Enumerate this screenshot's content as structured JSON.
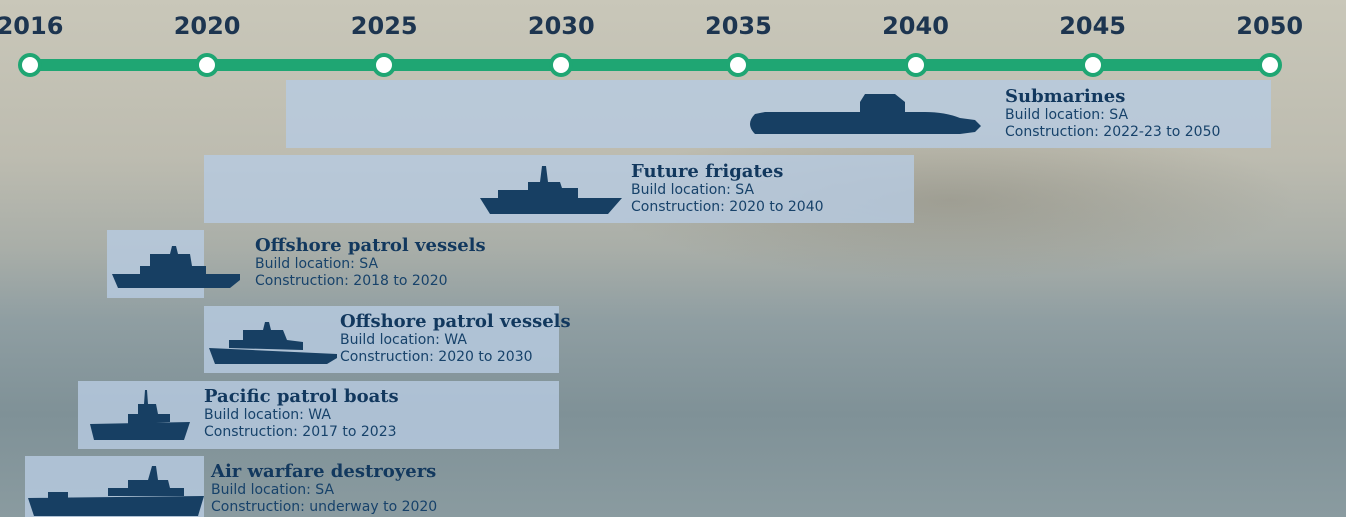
{
  "timeline": {
    "years": [
      "2016",
      "2020",
      "2025",
      "2030",
      "2035",
      "2040",
      "2045",
      "2050"
    ]
  },
  "items": [
    {
      "title": "Submarines",
      "location": "Build location: SA",
      "construction": "Construction: 2022-23 to 2050"
    },
    {
      "title": "Future frigates",
      "location": "Build location: SA",
      "construction": "Construction: 2020 to 2040"
    },
    {
      "title": "Offshore patrol vessels",
      "location": "Build location: SA",
      "construction": "Construction: 2018 to 2020"
    },
    {
      "title": "Offshore patrol vessels",
      "location": "Build location: WA",
      "construction": "Construction: 2020 to 2030"
    },
    {
      "title": "Pacific patrol boats",
      "location": "Build location: WA",
      "construction": "Construction: 2017 to 2023"
    },
    {
      "title": "Air warfare destroyers",
      "location": "Build location: SA",
      "construction": "Construction: underway to 2020"
    }
  ]
}
